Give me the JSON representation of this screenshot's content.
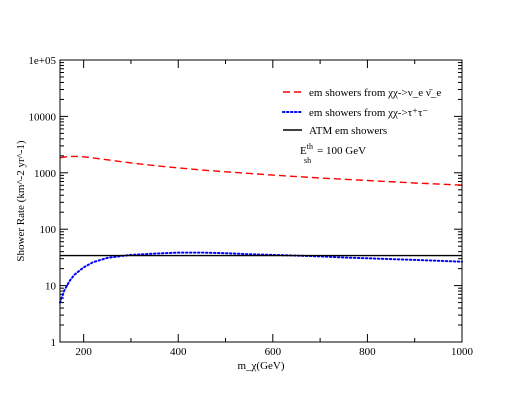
{
  "chart_data": {
    "type": "line",
    "xlabel": "m_χ(GeV)",
    "ylabel": "Shower Rate (km^-2 yr^-1)",
    "xlim": [
      150,
      1000
    ],
    "ylim": [
      1,
      100000
    ],
    "yscale": "log",
    "grid": false,
    "legend_placement": "top-right",
    "x_ticks": [
      200,
      400,
      600,
      800,
      1000
    ],
    "x_tick_labels": [
      "200",
      "400",
      "600",
      "800",
      "1000"
    ],
    "y_ticks": [
      1,
      10,
      100,
      1000,
      10000,
      100000
    ],
    "y_tick_labels": [
      "1",
      "10",
      "100",
      "1000",
      "10000",
      "1e+05"
    ],
    "series": [
      {
        "name": "em showers from χχ->ν_e ν̄_e",
        "color": "#ff0000",
        "style": "dashed",
        "x": [
          150,
          170,
          190,
          210,
          250,
          300,
          350,
          400,
          450,
          500,
          600,
          700,
          800,
          900,
          1000
        ],
        "y": [
          1850,
          1950,
          1950,
          1880,
          1700,
          1500,
          1340,
          1220,
          1120,
          1040,
          910,
          810,
          730,
          660,
          605
        ]
      },
      {
        "name": "em showers from χχ->τ⁺τ⁻",
        "color": "#0000ff",
        "style": "dotted",
        "x": [
          150,
          160,
          170,
          180,
          200,
          220,
          250,
          280,
          300,
          350,
          400,
          450,
          500,
          550,
          600,
          650,
          700,
          750,
          800,
          850,
          900,
          950,
          1000
        ],
        "y": [
          5,
          8.5,
          12,
          15.5,
          21,
          26,
          31,
          33.5,
          35,
          37,
          38.5,
          38.5,
          37.5,
          36,
          35,
          34,
          33,
          31.5,
          30.5,
          29.5,
          28.5,
          27.5,
          26.5
        ]
      },
      {
        "name": "ATM em showers",
        "color": "#000000",
        "style": "solid",
        "x": [
          150,
          1000
        ],
        "y": [
          34,
          34
        ]
      }
    ],
    "annotation": {
      "prefix": "E",
      "sup": "th",
      "sub": "sh",
      "value": "= 100 GeV"
    }
  }
}
